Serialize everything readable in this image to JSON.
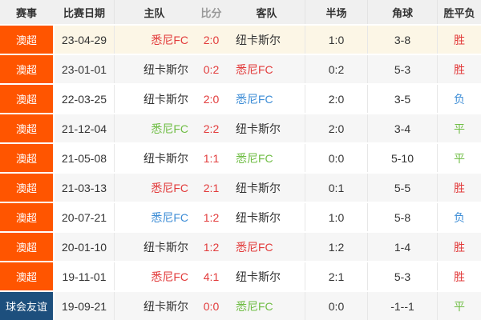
{
  "colors": {
    "red": "#e23b3b",
    "green": "#6fbd44",
    "blue": "#3d8dd6",
    "black": "#333333",
    "league_orange": "#ff5500",
    "league_navy": "#1d4f7d",
    "header_bg": "#f0f0f0",
    "highlight_row_bg": "#fcf6e6",
    "alt_row_bg": "#f6f6f6"
  },
  "table": {
    "headers": {
      "league": "赛事",
      "date": "比赛日期",
      "home": "主队",
      "score": "比分",
      "away": "客队",
      "half": "半场",
      "corners": "角球",
      "result": "胜平负"
    },
    "rows": [
      {
        "league": "澳超",
        "league_color": "league_orange",
        "date": "23-04-29",
        "home": "悉尼FC",
        "home_color": "red",
        "score": "2:0",
        "away": "纽卡斯尔",
        "away_color": "black",
        "half": "1:0",
        "corners": "3-8",
        "result": "胜",
        "result_color": "red",
        "bg": "highlight"
      },
      {
        "league": "澳超",
        "league_color": "league_orange",
        "date": "23-01-01",
        "home": "纽卡斯尔",
        "home_color": "black",
        "score": "0:2",
        "away": "悉尼FC",
        "away_color": "red",
        "half": "0:2",
        "corners": "5-3",
        "result": "胜",
        "result_color": "red",
        "bg": "gray"
      },
      {
        "league": "澳超",
        "league_color": "league_orange",
        "date": "22-03-25",
        "home": "纽卡斯尔",
        "home_color": "black",
        "score": "2:0",
        "away": "悉尼FC",
        "away_color": "blue",
        "half": "2:0",
        "corners": "3-5",
        "result": "负",
        "result_color": "blue",
        "bg": "white"
      },
      {
        "league": "澳超",
        "league_color": "league_orange",
        "date": "21-12-04",
        "home": "悉尼FC",
        "home_color": "green",
        "score": "2:2",
        "away": "纽卡斯尔",
        "away_color": "black",
        "half": "2:0",
        "corners": "3-4",
        "result": "平",
        "result_color": "green",
        "bg": "gray"
      },
      {
        "league": "澳超",
        "league_color": "league_orange",
        "date": "21-05-08",
        "home": "纽卡斯尔",
        "home_color": "black",
        "score": "1:1",
        "away": "悉尼FC",
        "away_color": "green",
        "half": "0:0",
        "corners": "5-10",
        "result": "平",
        "result_color": "green",
        "bg": "white"
      },
      {
        "league": "澳超",
        "league_color": "league_orange",
        "date": "21-03-13",
        "home": "悉尼FC",
        "home_color": "red",
        "score": "2:1",
        "away": "纽卡斯尔",
        "away_color": "black",
        "half": "0:1",
        "corners": "5-5",
        "result": "胜",
        "result_color": "red",
        "bg": "gray"
      },
      {
        "league": "澳超",
        "league_color": "league_orange",
        "date": "20-07-21",
        "home": "悉尼FC",
        "home_color": "blue",
        "score": "1:2",
        "away": "纽卡斯尔",
        "away_color": "black",
        "half": "1:0",
        "corners": "5-8",
        "result": "负",
        "result_color": "blue",
        "bg": "white"
      },
      {
        "league": "澳超",
        "league_color": "league_orange",
        "date": "20-01-10",
        "home": "纽卡斯尔",
        "home_color": "black",
        "score": "1:2",
        "away": "悉尼FC",
        "away_color": "red",
        "half": "1:2",
        "corners": "1-4",
        "result": "胜",
        "result_color": "red",
        "bg": "gray"
      },
      {
        "league": "澳超",
        "league_color": "league_orange",
        "date": "19-11-01",
        "home": "悉尼FC",
        "home_color": "red",
        "score": "4:1",
        "away": "纽卡斯尔",
        "away_color": "black",
        "half": "2:1",
        "corners": "5-3",
        "result": "胜",
        "result_color": "red",
        "bg": "white"
      },
      {
        "league": "球会友谊",
        "league_color": "league_navy",
        "date": "19-09-21",
        "home": "纽卡斯尔",
        "home_color": "black",
        "score": "0:0",
        "away": "悉尼FC",
        "away_color": "green",
        "half": "0:0",
        "corners": "-1--1",
        "result": "平",
        "result_color": "green",
        "bg": "gray"
      }
    ]
  }
}
